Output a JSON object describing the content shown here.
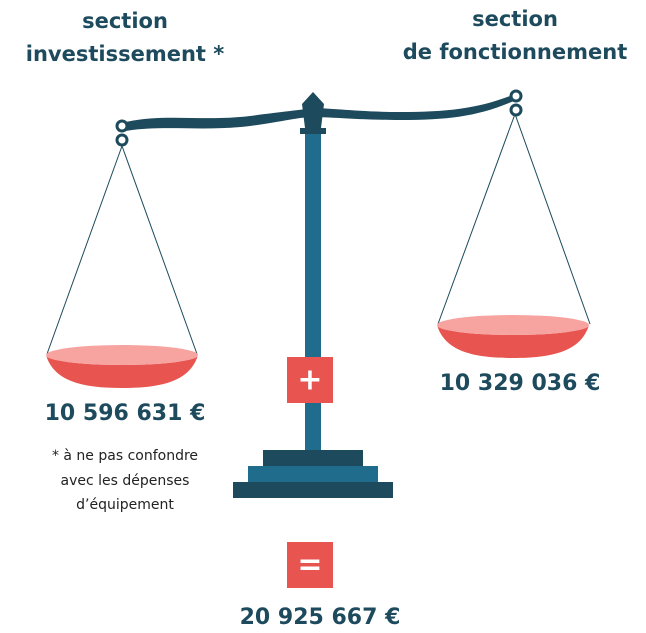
{
  "left": {
    "heading": [
      "section",
      "investissement *"
    ],
    "amount": "10 596 631 €",
    "note": [
      "* à ne pas confondre",
      "avec les dépenses",
      "d’équipement"
    ]
  },
  "right": {
    "heading": [
      "section",
      "de fonctionnement"
    ],
    "amount": "10 329 036 €"
  },
  "plus": "+",
  "equals": "=",
  "total": "20 925 667 €"
}
